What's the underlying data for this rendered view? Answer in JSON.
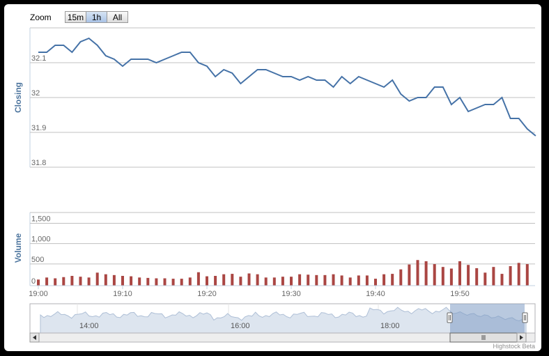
{
  "zoom": {
    "label": "Zoom",
    "buttons": [
      {
        "label": "15m",
        "active": false
      },
      {
        "label": "1h",
        "active": true
      },
      {
        "label": "All",
        "active": false
      }
    ]
  },
  "credit": "Highstock Beta",
  "colors": {
    "line": "#4572a7",
    "bars": "#aa4643",
    "navigator_fill": "#c9d6e6",
    "navigator_selected": "#7f9dc4",
    "axis_title": "#4d759e"
  },
  "chart_data": [
    {
      "type": "line",
      "name": "Closing",
      "ylabel": "Closing",
      "ylim": [
        31.8,
        32.2
      ],
      "yticks": [
        "31.8",
        "31.9",
        "32",
        "32.1"
      ],
      "x_minutes": [
        0,
        1,
        2,
        3,
        4,
        5,
        6,
        7,
        8,
        9,
        10,
        11,
        12,
        13,
        14,
        15,
        16,
        17,
        18,
        19,
        20,
        21,
        22,
        23,
        24,
        25,
        26,
        27,
        28,
        29,
        30,
        31,
        32,
        33,
        34,
        35,
        36,
        37,
        38,
        39,
        40,
        41,
        42,
        43,
        44,
        45,
        46,
        47,
        48,
        49,
        50,
        51,
        52,
        53,
        54,
        55,
        56,
        57,
        58,
        59
      ],
      "values": [
        32.13,
        32.13,
        32.15,
        32.15,
        32.13,
        32.16,
        32.17,
        32.15,
        32.12,
        32.11,
        32.09,
        32.11,
        32.11,
        32.11,
        32.1,
        32.11,
        32.12,
        32.13,
        32.13,
        32.1,
        32.09,
        32.06,
        32.08,
        32.07,
        32.04,
        32.06,
        32.08,
        32.08,
        32.07,
        32.06,
        32.06,
        32.05,
        32.06,
        32.05,
        32.05,
        32.03,
        32.06,
        32.04,
        32.06,
        32.05,
        32.04,
        32.03,
        32.05,
        32.01,
        31.99,
        32.0,
        32.0,
        32.03,
        32.03,
        31.98,
        32.0,
        31.96,
        31.97,
        31.98,
        31.98,
        32.0,
        31.94,
        31.94,
        31.91,
        31.89
      ]
    },
    {
      "type": "bar",
      "name": "Volume",
      "ylabel": "Volume",
      "ylim": [
        0,
        1800
      ],
      "yticks": [
        "0",
        "500",
        "1,000",
        "1,500"
      ],
      "x_minutes": [
        0,
        1,
        2,
        3,
        4,
        5,
        6,
        7,
        8,
        9,
        10,
        11,
        12,
        13,
        14,
        15,
        16,
        17,
        18,
        19,
        20,
        21,
        22,
        23,
        24,
        25,
        26,
        27,
        28,
        29,
        30,
        31,
        32,
        33,
        34,
        35,
        36,
        37,
        38,
        39,
        40,
        41,
        42,
        43,
        44,
        45,
        46,
        47,
        48,
        49,
        50,
        51,
        52,
        53,
        54,
        55,
        56,
        57,
        58
      ],
      "values": [
        150,
        200,
        180,
        210,
        240,
        220,
        200,
        320,
        280,
        260,
        240,
        230,
        200,
        190,
        180,
        180,
        170,
        170,
        200,
        330,
        230,
        240,
        280,
        290,
        220,
        300,
        280,
        200,
        200,
        220,
        220,
        280,
        270,
        260,
        260,
        280,
        250,
        200,
        250,
        250,
        170,
        280,
        290,
        400,
        520,
        630,
        600,
        530,
        460,
        420,
        600,
        510,
        430,
        320,
        460,
        290,
        480,
        560,
        530
      ]
    },
    {
      "type": "area",
      "name": "navigator",
      "xticks": [
        "14:00",
        "16:00",
        "18:00"
      ]
    }
  ],
  "x_axis": {
    "ticks": [
      "19:00",
      "19:10",
      "19:20",
      "19:30",
      "19:40",
      "19:50"
    ]
  }
}
